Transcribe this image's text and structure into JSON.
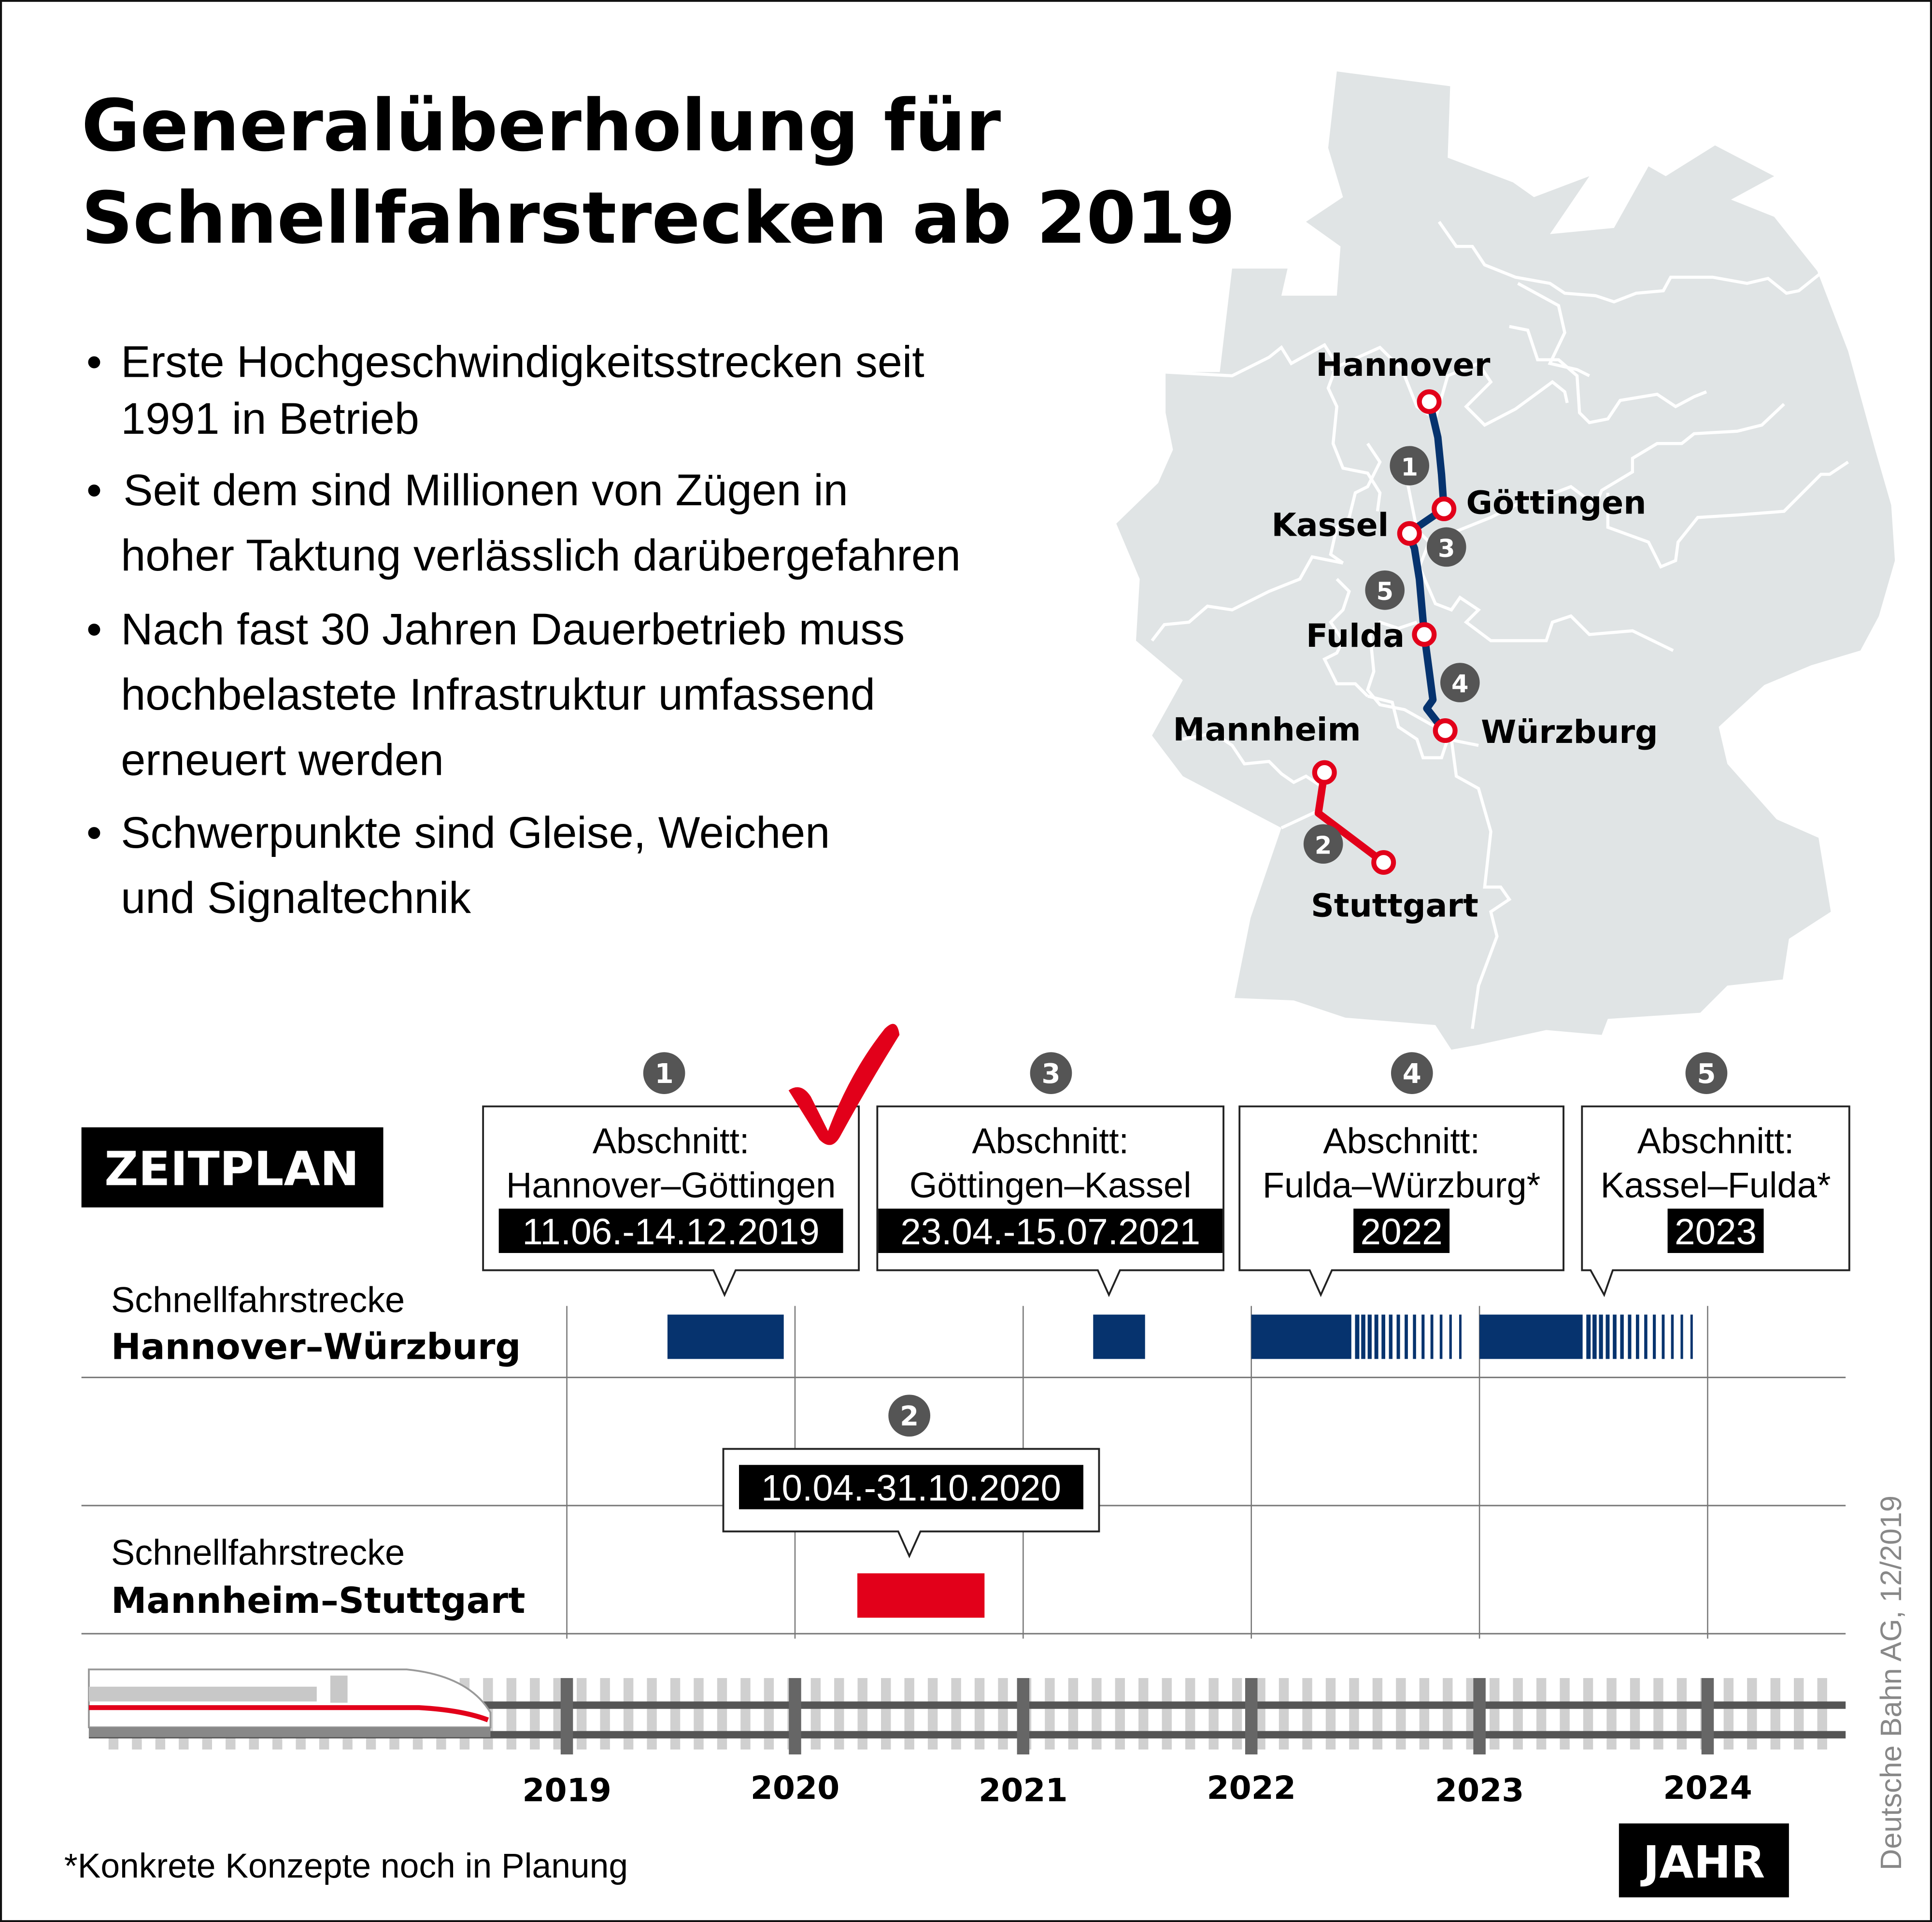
{
  "title": {
    "line1": "Generalüberholung für",
    "line2": "Schnellfahrstrecken ab 2019"
  },
  "bullets": [
    {
      "lines": [
        "Erste Hochgeschwindigkeitsstrecken seit",
        "1991 in Betrieb"
      ]
    },
    {
      "lines": [
        "Seit dem sind Millionen von Zügen in",
        "hoher Taktung verlässlich darübergefahren"
      ]
    },
    {
      "lines": [
        "Nach fast 30 Jahren Dauerbetrieb muss",
        "hochbelastete Infrastruktur umfassend",
        "erneuert werden"
      ]
    },
    {
      "lines": [
        "Schwerpunkte sind Gleise, Weichen",
        "und Signaltechnik"
      ]
    }
  ],
  "map": {
    "cities": [
      "Hannover",
      "Göttingen",
      "Kassel",
      "Fulda",
      "Würzburg",
      "Mannheim",
      "Stuttgart"
    ],
    "section_numbers": [
      "1",
      "2",
      "3",
      "4",
      "5"
    ]
  },
  "schedule_label": "ZEITPLAN",
  "year_label": "JAHR",
  "footnote": "*Konkrete Konzepte noch in Planung",
  "source": "Deutsche Bahn AG, 12/2019",
  "colors": {
    "blue": "#06336e",
    "red": "#e2001a",
    "map": "#e0e4e5",
    "badge": "#555555"
  },
  "chart_data": {
    "type": "bar",
    "subtype": "gantt-timeline",
    "xlabel": "JAHR",
    "xlim": [
      2019,
      2024.6
    ],
    "x_ticks": [
      "2019",
      "2020",
      "2021",
      "2022",
      "2023",
      "2024"
    ],
    "rows": [
      {
        "label_prefix": "Schnellfahrstrecke",
        "label": "Hannover–Würzburg"
      },
      {
        "label_prefix": "Schnellfahrstrecke",
        "label": "Mannheim–Stuttgart"
      }
    ],
    "bars": [
      {
        "number": "1",
        "row": 0,
        "heading": "Abschnitt:",
        "section": "Hannover–Göttingen",
        "period": "11.06.-14.12.2019",
        "start": "2019-06-11",
        "end": "2019-12-14",
        "color": "#06336e",
        "completed": true
      },
      {
        "number": "3",
        "row": 0,
        "heading": "Abschnitt:",
        "section": "Göttingen–Kassel",
        "period": "23.04.-15.07.2021",
        "start": "2021-04-23",
        "end": "2021-07-15",
        "color": "#06336e",
        "completed": false
      },
      {
        "number": "4",
        "row": 0,
        "heading": "Abschnitt:",
        "section": "Fulda–Würzburg*",
        "period": "2022",
        "start": "2022-01-01",
        "end": "2022-06-10",
        "tentative_end": "2022-12-05",
        "color": "#06336e",
        "completed": false
      },
      {
        "number": "5",
        "row": 0,
        "heading": "Abschnitt:",
        "section": "Kassel–Fulda*",
        "period": "2023",
        "start": "2023-01-01",
        "end": "2023-06-15",
        "tentative_end": "2023-12-05",
        "color": "#06336e",
        "completed": false
      },
      {
        "number": "2",
        "row": 1,
        "heading": "",
        "section": "",
        "period": "10.04.-31.10.2020",
        "start": "2020-04-10",
        "end": "2020-10-31",
        "color": "#e2001a",
        "completed": false
      }
    ]
  }
}
